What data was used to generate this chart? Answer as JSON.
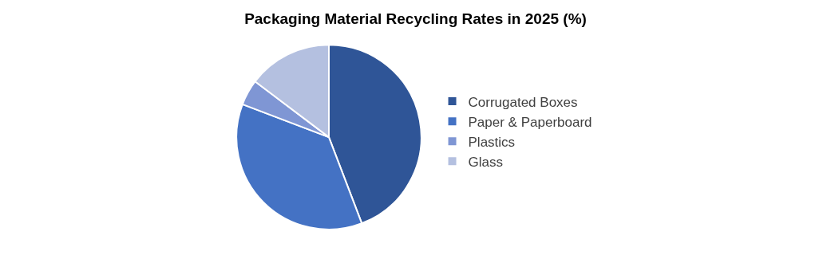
{
  "chart_data": {
    "type": "pie",
    "title": "Packaging Material Recycling Rates in 2025 (%)",
    "categories": [
      "Corrugated Boxes",
      "Paper & Paperboard",
      "Plastics",
      "Glass"
    ],
    "values": [
      44.2,
      36.6,
      4.5,
      14.7
    ],
    "colors": [
      "#2f5597",
      "#4472c4",
      "#7f96d4",
      "#b4c0e0"
    ],
    "legend": "right"
  }
}
